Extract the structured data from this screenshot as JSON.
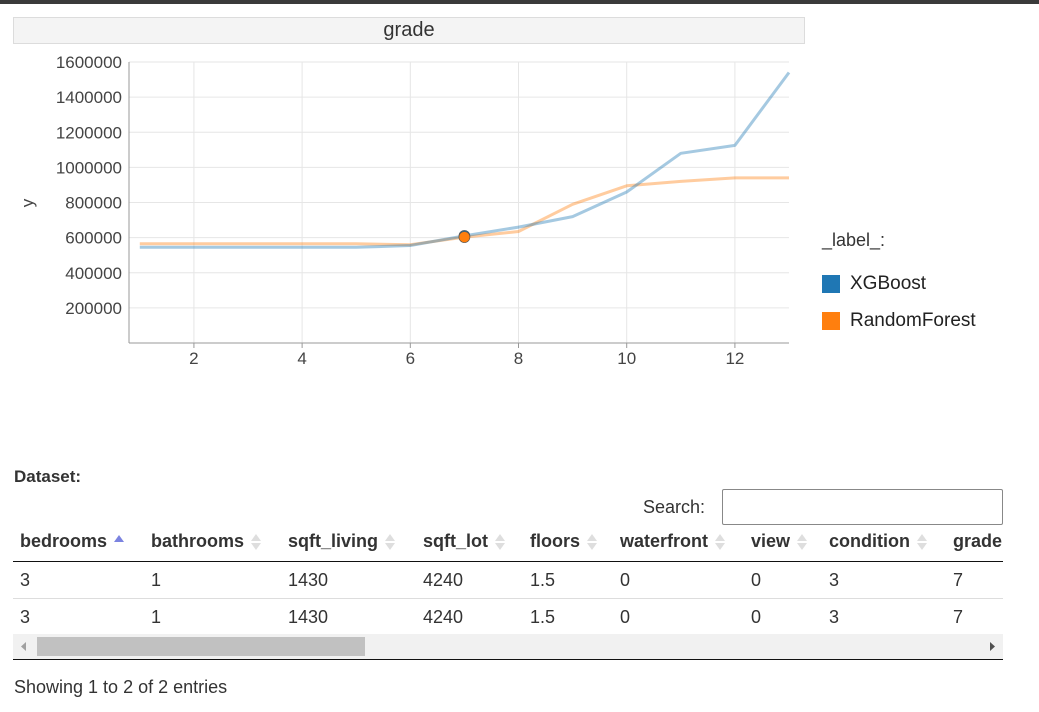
{
  "chart_data": {
    "type": "line",
    "title": "grade",
    "xlabel": "",
    "ylabel": "y",
    "xlim": [
      0.8,
      13.0
    ],
    "ylim": [
      0,
      1600000
    ],
    "x_ticks": [
      2,
      4,
      6,
      8,
      10,
      12
    ],
    "y_ticks": [
      200000,
      400000,
      600000,
      800000,
      1000000,
      1200000,
      1400000,
      1600000
    ],
    "grid": true,
    "legend": {
      "title": "_label_:",
      "placement": "right"
    },
    "series": [
      {
        "name": "XGBoost",
        "color": "#1f77b4",
        "x": [
          1,
          2,
          3,
          4,
          5,
          6,
          7,
          8,
          9,
          10,
          11,
          12,
          13
        ],
        "y": [
          545000,
          545000,
          545000,
          545000,
          545000,
          555000,
          610000,
          660000,
          720000,
          860000,
          1080000,
          1125000,
          1540000
        ]
      },
      {
        "name": "RandomForest",
        "color": "#ff7f0e",
        "x": [
          1,
          2,
          3,
          4,
          5,
          6,
          7,
          8,
          9,
          10,
          11,
          12,
          13
        ],
        "y": [
          565000,
          565000,
          565000,
          565000,
          565000,
          560000,
          603000,
          635000,
          790000,
          895000,
          920000,
          940000,
          940000
        ]
      }
    ],
    "highlighted_points": [
      {
        "series": "XGBoost",
        "x": 7,
        "y": 610000
      },
      {
        "series": "RandomForest",
        "x": 7,
        "y": 603000
      }
    ]
  },
  "dataset": {
    "label": "Dataset:",
    "search_label": "Search:",
    "search_value": "",
    "columns": [
      "bedrooms",
      "bathrooms",
      "sqft_living",
      "sqft_lot",
      "floors",
      "waterfront",
      "view",
      "condition",
      "grade"
    ],
    "sorted_column": "bedrooms",
    "sort_direction": "ascending",
    "rows": [
      [
        "3",
        "1",
        "1430",
        "4240",
        "1.5",
        "0",
        "0",
        "3",
        "7"
      ],
      [
        "3",
        "1",
        "1430",
        "4240",
        "1.5",
        "0",
        "0",
        "3",
        "7"
      ]
    ],
    "info": "Showing 1 to 2 of 2 entries"
  }
}
